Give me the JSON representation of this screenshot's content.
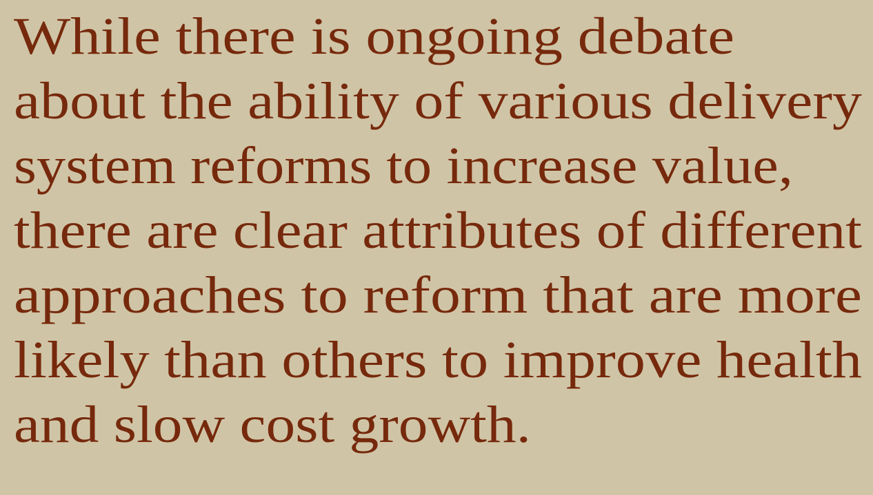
{
  "paragraph": {
    "lines": [
      "While there is ongoing debate",
      "about the ability of various delivery",
      "system reforms to increase value,",
      "there are clear attributes of different",
      "approaches to reform that are more",
      "likely than others to improve health",
      "and slow cost growth."
    ]
  }
}
